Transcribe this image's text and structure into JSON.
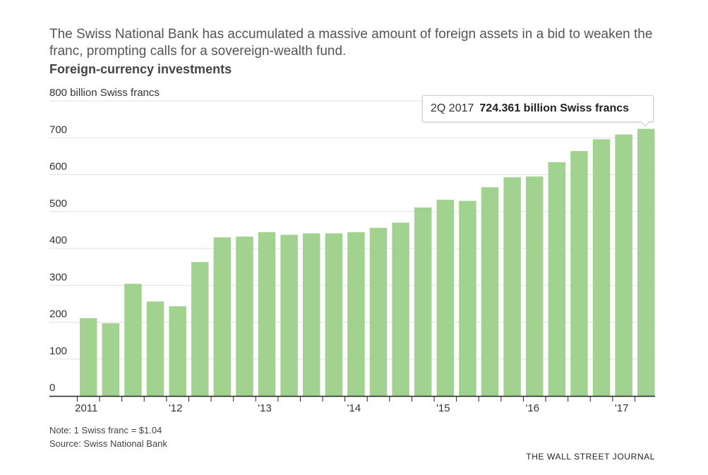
{
  "header": {
    "subtitle": "The Swiss National Bank has accumulated a massive amount of foreign assets in a bid to weaken the franc, prompting calls for a sovereign-wealth fund.",
    "title": "Foreign-currency investments"
  },
  "tooltip": {
    "period": "2Q 2017",
    "value_text": "724.361 billion Swiss francs"
  },
  "footer": {
    "note": "Note: 1 Swiss franc = $1.04",
    "source": "Source: Swiss National Bank",
    "brand": "THE WALL STREET JOURNAL"
  },
  "colors": {
    "bar": "#a1d28f",
    "grid": "#e2e2e2",
    "axis": "#222222"
  },
  "chart_data": {
    "type": "bar",
    "ylabel": "800 billion Swiss francs",
    "ylim": [
      0,
      800
    ],
    "yticks": [
      0,
      100,
      200,
      300,
      400,
      500,
      600,
      700,
      800
    ],
    "ytick_labels": [
      "0",
      "100",
      "200",
      "300",
      "400",
      "500",
      "600",
      "700",
      "800 billion Swiss francs"
    ],
    "categories": [
      "1Q 2011",
      "2Q 2011",
      "3Q 2011",
      "4Q 2011",
      "1Q 2012",
      "2Q 2012",
      "3Q 2012",
      "4Q 2012",
      "1Q 2013",
      "2Q 2013",
      "3Q 2013",
      "4Q 2013",
      "1Q 2014",
      "2Q 2014",
      "3Q 2014",
      "4Q 2014",
      "1Q 2015",
      "2Q 2015",
      "3Q 2015",
      "4Q 2015",
      "1Q 2016",
      "2Q 2016",
      "3Q 2016",
      "4Q 2016",
      "1Q 2017",
      "2Q 2017"
    ],
    "values": [
      211,
      197,
      304,
      256,
      243,
      363,
      430,
      432,
      444,
      437,
      441,
      441,
      444,
      456,
      470,
      511,
      532,
      529,
      566,
      593,
      595,
      634,
      664,
      696,
      709,
      724.361
    ],
    "x_tick_labels": [
      {
        "label": "2011",
        "index": 0
      },
      {
        "label": "'12",
        "index": 4
      },
      {
        "label": "'13",
        "index": 8
      },
      {
        "label": "'14",
        "index": 12
      },
      {
        "label": "'15",
        "index": 16
      },
      {
        "label": "'16",
        "index": 20
      },
      {
        "label": "'17",
        "index": 24
      }
    ],
    "highlight_index": 25,
    "grid": true,
    "legend": "none"
  }
}
